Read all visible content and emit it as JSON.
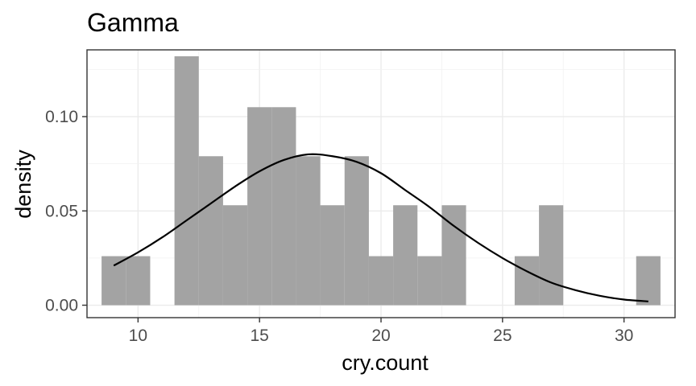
{
  "chart_data": {
    "type": "bar",
    "title": "Gamma",
    "xlabel": "cry.count",
    "ylabel": "density",
    "xlim": [
      7.9,
      32.1
    ],
    "ylim": [
      -0.0066,
      0.1354
    ],
    "x_ticks": [
      10,
      15,
      20,
      25,
      30
    ],
    "x_tick_labels": [
      "10",
      "15",
      "20",
      "25",
      "30"
    ],
    "y_ticks": [
      0.0,
      0.05,
      0.1
    ],
    "y_tick_labels": [
      "0.00",
      "0.05",
      "0.10"
    ],
    "grid": true,
    "histogram": {
      "bin_width": 1,
      "bin_centers": [
        9,
        10,
        11,
        12,
        13,
        14,
        15,
        16,
        17,
        18,
        19,
        20,
        21,
        22,
        23,
        24,
        25,
        26,
        27,
        28,
        29,
        30,
        31
      ],
      "density": [
        0.026,
        0.026,
        0.0,
        0.132,
        0.079,
        0.053,
        0.105,
        0.105,
        0.079,
        0.053,
        0.079,
        0.026,
        0.053,
        0.026,
        0.053,
        0.0,
        0.0,
        0.026,
        0.053,
        0.0,
        0.0,
        0.0,
        0.026
      ],
      "color": "#a3a3a3"
    },
    "curve": {
      "color": "#000000",
      "x": [
        9,
        10,
        11,
        12,
        13,
        14,
        15,
        16,
        17,
        18,
        19,
        20,
        21,
        22,
        23,
        24,
        25,
        26,
        27,
        28,
        29,
        30,
        31
      ],
      "y": [
        0.021,
        0.028,
        0.036,
        0.045,
        0.054,
        0.063,
        0.071,
        0.077,
        0.08,
        0.079,
        0.076,
        0.07,
        0.061,
        0.052,
        0.042,
        0.033,
        0.025,
        0.018,
        0.012,
        0.008,
        0.005,
        0.003,
        0.002
      ]
    }
  }
}
